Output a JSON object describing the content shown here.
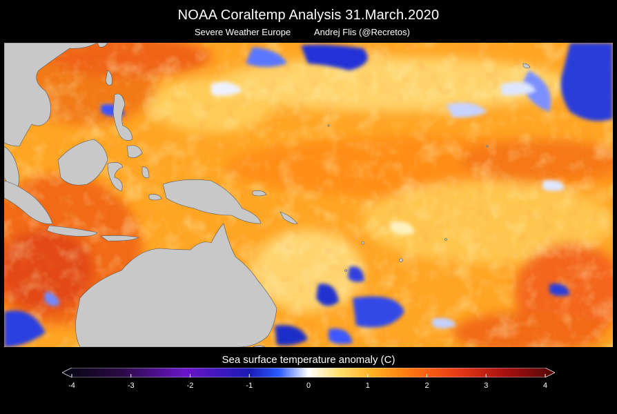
{
  "header": {
    "title": "NOAA Coraltemp Analysis  31.March.2020",
    "source": "Severe Weather Europe",
    "author": "Andrej Flis (@Recretos)"
  },
  "map": {
    "region": "Western and central tropical Pacific, Maritime Continent, Australia",
    "land_color": "#c8c8c8",
    "palette": [
      "#05050f",
      "#3a0a5c",
      "#6a14c8",
      "#1a1ac8",
      "#2a5aff",
      "#ffffff",
      "#ffe070",
      "#ffb020",
      "#ff7a10",
      "#e83a14",
      "#b01010",
      "#600808"
    ]
  },
  "colorbar": {
    "title": "Sea surface temperature anomaly (C)",
    "ticks": [
      "-4",
      "-3",
      "-2",
      "-1",
      "0",
      "1",
      "2",
      "3",
      "4"
    ],
    "min": -4,
    "max": 4
  }
}
